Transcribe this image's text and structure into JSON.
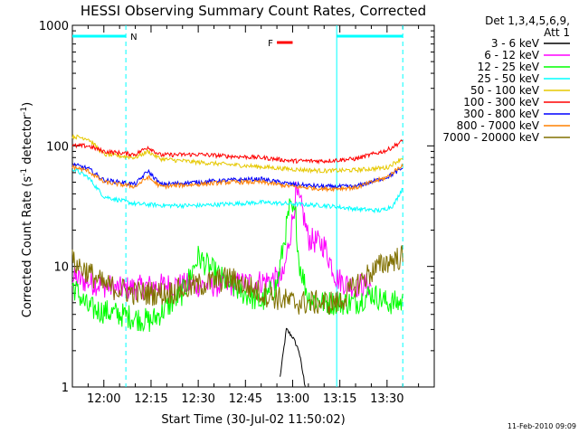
{
  "chart_data": {
    "type": "line",
    "title": "HESSI Observing Summary Count Rates, Corrected",
    "xlabel": "Start Time (30-Jul-02 11:50:02)",
    "ylabel_main": "Corrected Count Rate (s",
    "ylabel_sup1": "-1",
    "ylabel_mid": " detector",
    "ylabel_sup2": "-1",
    "ylabel_end": ")",
    "yscale": "log",
    "ylim": [
      1,
      1000
    ],
    "xlim_minutes": [
      -10,
      105
    ],
    "y_ticks": [
      {
        "value": 1,
        "label": "1"
      },
      {
        "value": 10,
        "label": "10"
      },
      {
        "value": 100,
        "label": "100"
      },
      {
        "value": 1000,
        "label": "1000"
      }
    ],
    "x_ticks": [
      {
        "min": 0,
        "label": "12:00"
      },
      {
        "min": 15,
        "label": "12:15"
      },
      {
        "min": 30,
        "label": "12:30"
      },
      {
        "min": 45,
        "label": "12:45"
      },
      {
        "min": 60,
        "label": "13:00"
      },
      {
        "min": 75,
        "label": "13:15"
      },
      {
        "min": 90,
        "label": "13:30"
      }
    ],
    "legend_header": [
      "Det 1,3,4,5,6,9,",
      "Att 1"
    ],
    "series": [
      {
        "name": "3 - 6 keV",
        "color": "#000000",
        "points": [
          [
            56,
            1.2
          ],
          [
            58,
            3.0
          ],
          [
            60,
            2.6
          ],
          [
            62,
            2.0
          ],
          [
            64,
            1.0
          ]
        ]
      },
      {
        "name": "6 - 12 keV",
        "color": "#ff00ff",
        "points": [
          [
            -10,
            8
          ],
          [
            5,
            6.5
          ],
          [
            20,
            7
          ],
          [
            40,
            7
          ],
          [
            50,
            7.5
          ],
          [
            57,
            8
          ],
          [
            60,
            25
          ],
          [
            61,
            40
          ],
          [
            63,
            30
          ],
          [
            65,
            17
          ],
          [
            70,
            15
          ],
          [
            74,
            8
          ],
          [
            78,
            7
          ],
          [
            85,
            7
          ]
        ]
      },
      {
        "name": "12 - 25 keV",
        "color": "#00ff00",
        "points": [
          [
            -10,
            7
          ],
          [
            -5,
            4.5
          ],
          [
            5,
            4
          ],
          [
            15,
            3.5
          ],
          [
            25,
            6
          ],
          [
            30,
            12
          ],
          [
            35,
            9
          ],
          [
            40,
            7
          ],
          [
            50,
            5
          ],
          [
            55,
            7
          ],
          [
            59,
            30
          ],
          [
            61,
            26
          ],
          [
            62,
            11
          ],
          [
            65,
            5.5
          ],
          [
            70,
            5
          ],
          [
            80,
            5
          ],
          [
            85,
            6
          ],
          [
            90,
            5
          ],
          [
            95,
            5
          ]
        ]
      },
      {
        "name": "25 - 50 keV",
        "color": "#00ffff",
        "points": [
          [
            -10,
            65
          ],
          [
            -5,
            55
          ],
          [
            0,
            38
          ],
          [
            10,
            33
          ],
          [
            20,
            32
          ],
          [
            30,
            32
          ],
          [
            40,
            33
          ],
          [
            50,
            34
          ],
          [
            60,
            33
          ],
          [
            70,
            32
          ],
          [
            80,
            30
          ],
          [
            88,
            29
          ],
          [
            92,
            32
          ],
          [
            95,
            45
          ]
        ]
      },
      {
        "name": "50 - 100 keV",
        "color": "#e6c800",
        "points": [
          [
            -10,
            120
          ],
          [
            -5,
            115
          ],
          [
            0,
            85
          ],
          [
            10,
            80
          ],
          [
            14,
            90
          ],
          [
            18,
            78
          ],
          [
            30,
            73
          ],
          [
            40,
            70
          ],
          [
            50,
            67
          ],
          [
            60,
            64
          ],
          [
            70,
            62
          ],
          [
            80,
            63
          ],
          [
            90,
            66
          ],
          [
            95,
            80
          ]
        ]
      },
      {
        "name": "100 - 300 keV",
        "color": "#ff0000",
        "points": [
          [
            -10,
            100
          ],
          [
            -5,
            100
          ],
          [
            0,
            90
          ],
          [
            10,
            85
          ],
          [
            14,
            98
          ],
          [
            18,
            84
          ],
          [
            30,
            85
          ],
          [
            40,
            82
          ],
          [
            50,
            80
          ],
          [
            60,
            75
          ],
          [
            70,
            75
          ],
          [
            80,
            78
          ],
          [
            90,
            92
          ],
          [
            95,
            110
          ]
        ]
      },
      {
        "name": "300 - 800 keV",
        "color": "#0000ff",
        "points": [
          [
            -10,
            70
          ],
          [
            -5,
            65
          ],
          [
            0,
            52
          ],
          [
            10,
            48
          ],
          [
            14,
            62
          ],
          [
            18,
            48
          ],
          [
            30,
            50
          ],
          [
            40,
            52
          ],
          [
            50,
            53
          ],
          [
            60,
            48
          ],
          [
            70,
            46
          ],
          [
            80,
            46
          ],
          [
            90,
            55
          ],
          [
            95,
            65
          ]
        ]
      },
      {
        "name": "800 - 7000 keV",
        "color": "#ff8000",
        "points": [
          [
            -10,
            67
          ],
          [
            -5,
            62
          ],
          [
            0,
            50
          ],
          [
            10,
            46
          ],
          [
            14,
            55
          ],
          [
            18,
            46
          ],
          [
            30,
            48
          ],
          [
            40,
            50
          ],
          [
            50,
            50
          ],
          [
            60,
            46
          ],
          [
            70,
            44
          ],
          [
            80,
            45
          ],
          [
            90,
            55
          ],
          [
            95,
            70
          ]
        ]
      },
      {
        "name": "7000 - 20000 keV",
        "color": "#807000",
        "points": [
          [
            -10,
            11
          ],
          [
            -5,
            9
          ],
          [
            0,
            7
          ],
          [
            10,
            6
          ],
          [
            20,
            6
          ],
          [
            30,
            7
          ],
          [
            40,
            8
          ],
          [
            50,
            6
          ],
          [
            60,
            5
          ],
          [
            70,
            5
          ],
          [
            75,
            5
          ],
          [
            80,
            7
          ],
          [
            85,
            9
          ],
          [
            90,
            11
          ],
          [
            95,
            12
          ]
        ]
      }
    ],
    "top_bars": [
      {
        "color": "#00ffff",
        "label": "N",
        "x_start": -10,
        "x_end": 7
      },
      {
        "color": "#00ffff",
        "label": "",
        "x_start": 74,
        "x_end": 95
      },
      {
        "color": "#ff0000",
        "label": "F",
        "x_start": 55,
        "x_end": 60
      }
    ],
    "vertical_lines": [
      {
        "x": 7,
        "color": "#00ffff",
        "style": "dashed"
      },
      {
        "x": 74,
        "color": "#00ffff",
        "style": "solid"
      },
      {
        "x": 95,
        "color": "#00ffff",
        "style": "dashed"
      }
    ],
    "timestamp": "11-Feb-2010 09:09"
  }
}
